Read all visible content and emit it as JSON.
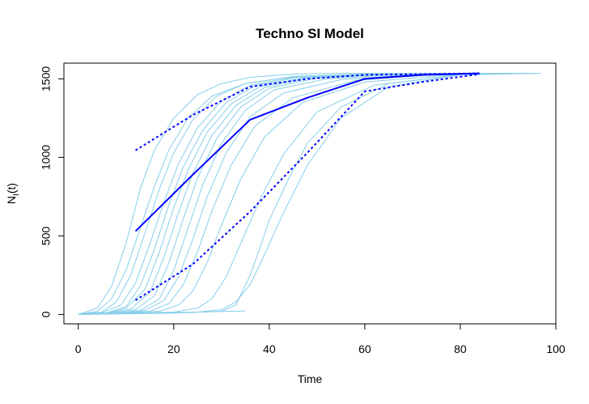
{
  "chart_data": {
    "type": "line",
    "title": "Techno SI Model",
    "xlabel": "Time",
    "ylabel_main": "N",
    "ylabel_sub": "I",
    "ylabel_tail": "(t)",
    "xlim": [
      -3,
      100
    ],
    "ylim": [
      -60,
      1600
    ],
    "xticks": [
      0,
      20,
      40,
      60,
      80,
      100
    ],
    "yticks": [
      0,
      500,
      1000,
      1500
    ],
    "xtick_labels": [
      "0",
      "20",
      "40",
      "60",
      "80",
      "100"
    ],
    "ytick_labels": [
      "0",
      "500",
      "1000",
      "1500"
    ],
    "colors": {
      "simulations": "#87CEEB",
      "mean": "#0000FF",
      "quantiles": "#0000FF"
    },
    "simulations": [
      {
        "x": [
          0,
          4,
          7,
          10,
          13,
          16,
          20,
          25,
          30,
          36,
          45,
          55,
          97
        ],
        "y": [
          0,
          40,
          180,
          450,
          800,
          1050,
          1250,
          1400,
          1470,
          1510,
          1530,
          1535,
          1535
        ]
      },
      {
        "x": [
          0,
          4,
          7,
          10,
          13,
          16,
          19,
          23,
          28,
          35,
          45,
          60,
          80
        ],
        "y": [
          0,
          20,
          100,
          280,
          550,
          820,
          1050,
          1250,
          1390,
          1470,
          1515,
          1530,
          1535
        ]
      },
      {
        "x": [
          0,
          5,
          8,
          11,
          14,
          17,
          20,
          24,
          29,
          35,
          45,
          60,
          78
        ],
        "y": [
          0,
          15,
          80,
          250,
          520,
          800,
          1030,
          1240,
          1390,
          1470,
          1515,
          1530,
          1535
        ]
      },
      {
        "x": [
          0,
          5,
          9,
          12,
          15,
          18,
          21,
          25,
          30,
          36,
          45,
          60,
          75
        ],
        "y": [
          0,
          10,
          60,
          200,
          450,
          720,
          960,
          1190,
          1360,
          1460,
          1510,
          1530,
          1535
        ]
      },
      {
        "x": [
          0,
          6,
          10,
          13,
          16,
          19,
          22,
          26,
          31,
          37,
          46,
          60,
          78
        ],
        "y": [
          0,
          10,
          50,
          180,
          420,
          700,
          940,
          1170,
          1350,
          1455,
          1510,
          1530,
          1535
        ]
      },
      {
        "x": [
          0,
          6,
          10,
          14,
          17,
          20,
          23,
          27,
          32,
          38,
          47,
          60,
          80
        ],
        "y": [
          0,
          8,
          40,
          160,
          400,
          680,
          920,
          1160,
          1340,
          1450,
          1505,
          1530,
          1535
        ]
      },
      {
        "x": [
          0,
          6,
          11,
          15,
          18,
          21,
          24,
          28,
          33,
          39,
          48,
          62,
          82
        ],
        "y": [
          0,
          8,
          35,
          140,
          370,
          650,
          900,
          1140,
          1330,
          1445,
          1505,
          1530,
          1535
        ]
      },
      {
        "x": [
          0,
          7,
          12,
          16,
          19,
          22,
          25,
          29,
          34,
          40,
          50,
          65,
          85
        ],
        "y": [
          0,
          8,
          30,
          120,
          330,
          610,
          870,
          1120,
          1320,
          1440,
          1505,
          1530,
          1535
        ]
      },
      {
        "x": [
          0,
          8,
          13,
          17,
          20,
          23,
          26,
          30,
          35,
          41,
          52,
          68,
          88
        ],
        "y": [
          0,
          8,
          25,
          100,
          280,
          550,
          820,
          1090,
          1300,
          1430,
          1500,
          1530,
          1535
        ]
      },
      {
        "x": [
          0,
          8,
          14,
          18,
          21,
          24,
          27,
          31,
          36,
          43,
          55,
          70,
          90
        ],
        "y": [
          0,
          8,
          25,
          90,
          240,
          480,
          750,
          1030,
          1260,
          1410,
          1495,
          1528,
          1535
        ]
      },
      {
        "x": [
          0,
          9,
          15,
          19,
          22,
          25,
          28,
          32,
          37,
          45,
          58,
          75,
          90
        ],
        "y": [
          0,
          8,
          20,
          70,
          190,
          400,
          660,
          950,
          1200,
          1380,
          1490,
          1528,
          1535
        ]
      },
      {
        "x": [
          0,
          10,
          17,
          21,
          24,
          27,
          30,
          34,
          39,
          47,
          60,
          78,
          92
        ],
        "y": [
          0,
          8,
          20,
          60,
          150,
          330,
          570,
          860,
          1130,
          1350,
          1480,
          1525,
          1535
        ]
      },
      {
        "x": [
          0,
          12,
          20,
          25,
          28,
          31,
          34,
          38,
          43,
          50,
          62,
          80,
          95
        ],
        "y": [
          0,
          8,
          15,
          40,
          100,
          240,
          450,
          730,
          1020,
          1290,
          1460,
          1525,
          1535
        ]
      },
      {
        "x": [
          0,
          15,
          25,
          30,
          33,
          36,
          39,
          43,
          48,
          55,
          65,
          80,
          95
        ],
        "y": [
          0,
          8,
          15,
          30,
          80,
          190,
          380,
          650,
          950,
          1250,
          1450,
          1525,
          1535
        ]
      },
      {
        "x": [
          0,
          20,
          30,
          33,
          36,
          38,
          40,
          44,
          48,
          55,
          65,
          80,
          96
        ],
        "y": [
          0,
          8,
          20,
          60,
          250,
          420,
          600,
          860,
          1090,
          1320,
          1470,
          1528,
          1535
        ]
      },
      {
        "x": [
          0,
          5,
          10,
          15,
          20,
          25,
          30,
          35
        ],
        "y": [
          0,
          3,
          6,
          9,
          12,
          15,
          19,
          22
        ]
      }
    ],
    "mean": {
      "x": [
        12,
        24,
        36,
        48,
        60,
        72,
        84
      ],
      "y": [
        530,
        890,
        1240,
        1380,
        1500,
        1525,
        1535
      ]
    },
    "upper": {
      "x": [
        12,
        24,
        36,
        48,
        60,
        72,
        84
      ],
      "y": [
        1045,
        1270,
        1450,
        1500,
        1525,
        1530,
        1535
      ]
    },
    "lower": {
      "x": [
        12,
        24,
        36,
        48,
        60,
        72,
        84
      ],
      "y": [
        90,
        320,
        655,
        1030,
        1420,
        1480,
        1530
      ]
    }
  }
}
